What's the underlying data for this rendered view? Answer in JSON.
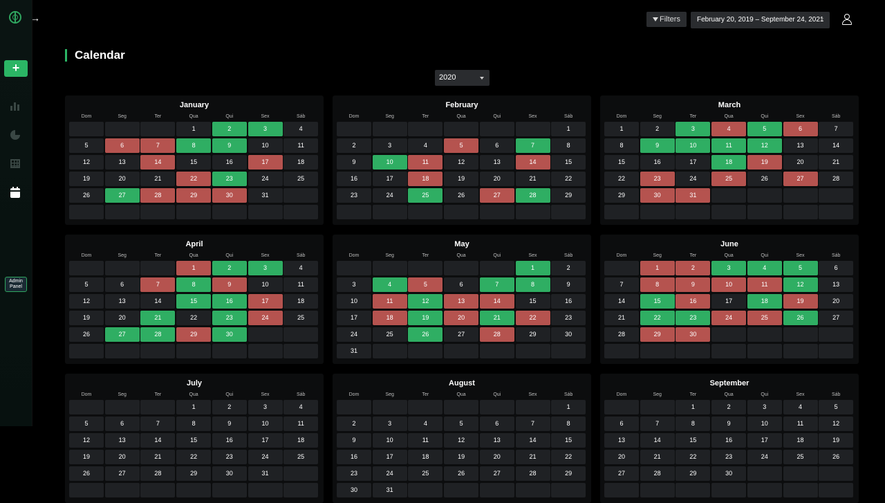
{
  "sidebar": {
    "expand_icon": "→",
    "add_label": "+",
    "admin_label": "Admin\nPanel",
    "icons": [
      "logo-icon",
      "bar-chart-icon",
      "pie-chart-icon",
      "table-icon",
      "calendar-icon"
    ]
  },
  "header": {
    "filters_label": "Filters",
    "date_range": "February 20, 2019 – September 24, 2021",
    "clear_icon": "×"
  },
  "page": {
    "title": "Calendar",
    "year": "2020"
  },
  "colors": {
    "green": "#2fae63",
    "red": "#b5534f",
    "accent": "#2bb565"
  },
  "weekdays": [
    "Dom",
    "Seg",
    "Ter",
    "Qua",
    "Qui",
    "Sex",
    "Sáb"
  ],
  "months": [
    {
      "name": "January",
      "start": 3,
      "days": 31,
      "rows": 6,
      "green": [
        2,
        3,
        8,
        9,
        23,
        27
      ],
      "red": [
        6,
        7,
        14,
        17,
        22,
        28,
        29,
        30
      ]
    },
    {
      "name": "February",
      "start": 6,
      "days": 29,
      "rows": 6,
      "green": [
        7,
        10,
        25,
        28
      ],
      "red": [
        5,
        11,
        14,
        18,
        27
      ]
    },
    {
      "name": "March",
      "start": 0,
      "days": 31,
      "rows": 6,
      "green": [
        3,
        5,
        9,
        10,
        11,
        12,
        18
      ],
      "red": [
        4,
        6,
        19,
        23,
        25,
        27,
        30,
        31
      ]
    },
    {
      "name": "April",
      "start": 3,
      "days": 30,
      "rows": 6,
      "green": [
        2,
        3,
        8,
        15,
        16,
        21,
        23,
        27,
        28,
        30
      ],
      "red": [
        1,
        7,
        9,
        17,
        24,
        29
      ]
    },
    {
      "name": "May",
      "start": 5,
      "days": 31,
      "rows": 6,
      "green": [
        1,
        4,
        7,
        8,
        12,
        19,
        21,
        26
      ],
      "red": [
        5,
        11,
        13,
        14,
        18,
        20,
        22,
        28
      ]
    },
    {
      "name": "June",
      "start": 1,
      "days": 30,
      "rows": 6,
      "green": [
        3,
        4,
        5,
        12,
        15,
        18,
        22,
        23,
        26
      ],
      "red": [
        1,
        2,
        8,
        9,
        10,
        11,
        16,
        19,
        24,
        25,
        29,
        30
      ]
    },
    {
      "name": "July",
      "start": 3,
      "days": 31,
      "rows": 6,
      "green": [],
      "red": []
    },
    {
      "name": "August",
      "start": 6,
      "days": 31,
      "rows": 6,
      "green": [],
      "red": []
    },
    {
      "name": "September",
      "start": 2,
      "days": 30,
      "rows": 6,
      "green": [],
      "red": []
    }
  ]
}
